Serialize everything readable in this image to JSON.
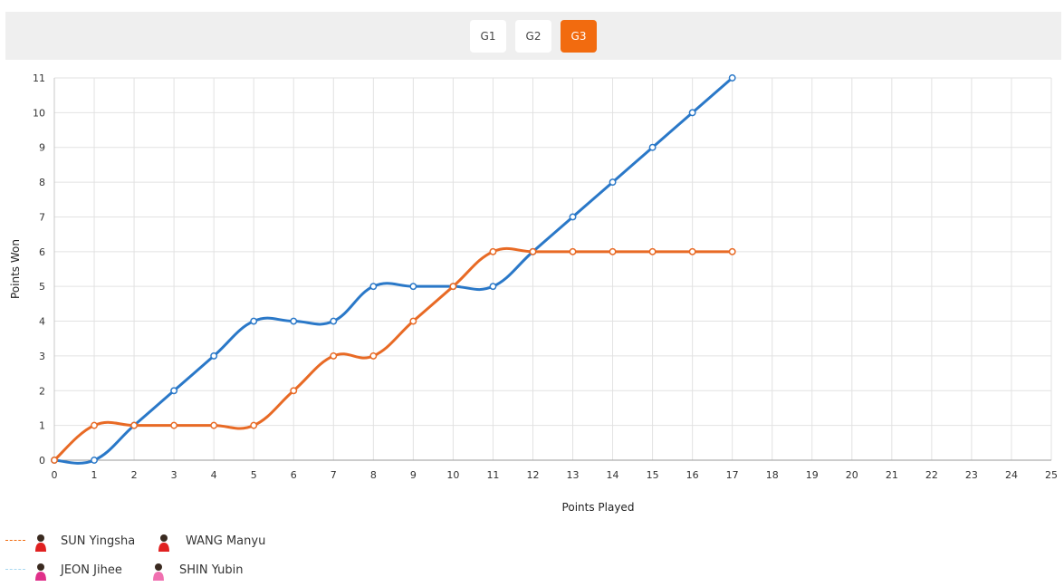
{
  "tabs": [
    {
      "label": "G1",
      "active": false
    },
    {
      "label": "G2",
      "active": false
    },
    {
      "label": "G3",
      "active": true
    }
  ],
  "legend": [
    {
      "color": "#f26b0f",
      "players": [
        {
          "name": "SUN Yingsha",
          "avatar_color": "#e02020"
        },
        {
          "name": "WANG Manyu",
          "avatar_color": "#e02020"
        }
      ]
    },
    {
      "color": "#a8d8f0",
      "players": [
        {
          "name": "JEON Jihee",
          "avatar_color": "#e0308a"
        },
        {
          "name": "SHIN Yubin",
          "avatar_color": "#f070b0"
        }
      ]
    }
  ],
  "chart_data": {
    "type": "line",
    "xlabel": "Points Played",
    "ylabel": "Points Won",
    "xlim": [
      0,
      25
    ],
    "ylim": [
      0,
      11
    ],
    "grid": true,
    "x": [
      0,
      1,
      2,
      3,
      4,
      5,
      6,
      7,
      8,
      9,
      10,
      11,
      12,
      13,
      14,
      15,
      16,
      17
    ],
    "series": [
      {
        "color": "#2a78c8",
        "values": [
          0,
          0,
          1,
          2,
          3,
          4,
          4,
          4,
          5,
          5,
          5,
          5,
          6,
          7,
          8,
          9,
          10,
          11
        ]
      },
      {
        "color": "#e86a25",
        "values": [
          0,
          1,
          1,
          1,
          1,
          1,
          2,
          3,
          3,
          4,
          5,
          6,
          6,
          6,
          6,
          6,
          6,
          6
        ]
      }
    ]
  }
}
